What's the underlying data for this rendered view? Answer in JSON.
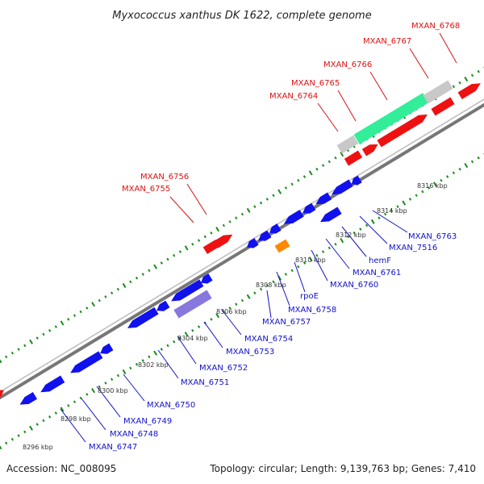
{
  "title": "Myxococcus xanthus DK 1622, complete genome",
  "footer": {
    "accession": "Accession: NC_008095",
    "stats": "Topology: circular; Length: 9,139,763 bp; Genes: 7,410"
  },
  "colors": {
    "forward_cds": "#ee1111",
    "reverse_cds": "#1111ee",
    "forward_label": "#dd1111",
    "reverse_label": "#1111cc",
    "rna_gene": "#ff8800",
    "gray_feature": "#c8c8c8",
    "green_feature": "#33ee99",
    "purple_feature": "#8877dd",
    "backbone": "#999999",
    "ticks": "#1a8a1a",
    "kbp_label": "#333333"
  },
  "kbp_labels": [
    "8296 kbp",
    "8298 kbp",
    "8300 kbp",
    "8302 kbp",
    "8304 kbp",
    "8306 kbp",
    "8308 kbp",
    "8310 kbp",
    "8312 kbp",
    "8314 kbp",
    "8316 kbp"
  ],
  "forward_gene_labels": [
    "MXAN_6755",
    "MXAN_6756",
    "MXAN_6764",
    "MXAN_6765",
    "MXAN_6766",
    "MXAN_6767",
    "MXAN_6768"
  ],
  "reverse_gene_labels": [
    "MXAN_6747",
    "MXAN_6748",
    "MXAN_6749",
    "MXAN_6750",
    "MXAN_6751",
    "MXAN_6752",
    "MXAN_6753",
    "MXAN_6754",
    "MXAN_6757",
    "MXAN_6758",
    "rpoE",
    "MXAN_6760",
    "MXAN_6761",
    "hemF",
    "MXAN_7516",
    "MXAN_6763"
  ]
}
